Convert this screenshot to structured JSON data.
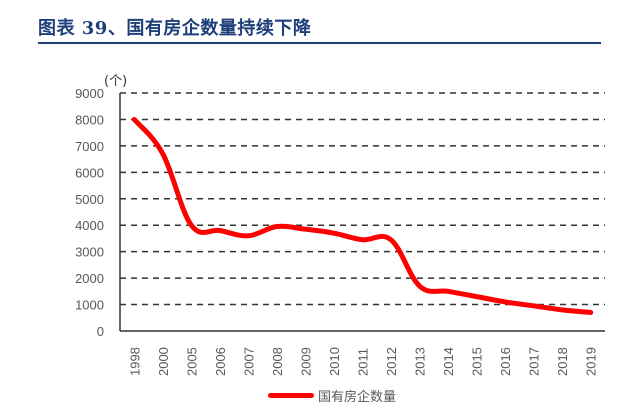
{
  "header": {
    "title": "图表 39、国有房企数量持续下降"
  },
  "chart_data": {
    "type": "line",
    "title": "图表 39、国有房企数量持续下降",
    "xlabel": "",
    "ylabel": "(个)",
    "ylim": [
      0,
      9000
    ],
    "yticks": [
      0,
      1000,
      2000,
      3000,
      4000,
      5000,
      6000,
      7000,
      8000,
      9000
    ],
    "grid": "horizontal dashed",
    "legend_position": "bottom",
    "categories": [
      "1998",
      "2000",
      "2005",
      "2006",
      "2007",
      "2008",
      "2009",
      "2010",
      "2011",
      "2012",
      "2013",
      "2014",
      "2015",
      "2016",
      "2017",
      "2018",
      "2019"
    ],
    "series": [
      {
        "name": "国有房企数量",
        "color": "#ff0000",
        "values": [
          8000,
          6700,
          4000,
          3800,
          3600,
          3950,
          3850,
          3700,
          3450,
          3450,
          1700,
          1500,
          1300,
          1100,
          950,
          800,
          700
        ]
      }
    ]
  },
  "legend": {
    "label": "国有房企数量",
    "color": "#ff0000"
  },
  "colors": {
    "title": "#1f3f7a",
    "line": "#ff0000",
    "grid": "#333333",
    "tick_text": "#595959"
  }
}
